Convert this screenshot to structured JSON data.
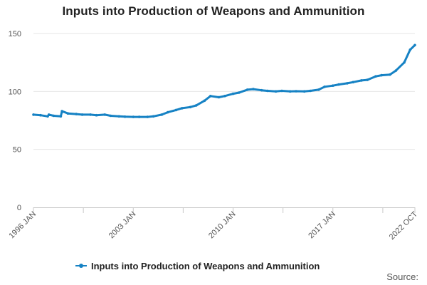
{
  "chart_data": {
    "type": "line",
    "title": "Inputs into Production of Weapons and Ammunition",
    "xlabel": "",
    "ylabel": "",
    "ylim": [
      0,
      150
    ],
    "yticks": [
      0,
      50,
      100,
      150
    ],
    "x_tick_labels": [
      "1996 JAN",
      "2003 JAN",
      "2010 JAN",
      "2017 JAN",
      "2022 OCT"
    ],
    "x_tick_dates": [
      "1996-01",
      "2003-01",
      "2010-01",
      "2017-01",
      "2022-10"
    ],
    "grid": "horizontal",
    "legend_position": "bottom",
    "series": [
      {
        "name": "Inputs into Production of Weapons and Ammunition",
        "color": "#1682c4",
        "x": [
          "1996-01",
          "1996-07",
          "1997-01",
          "1997-02",
          "1997-06",
          "1997-12",
          "1998-01",
          "1998-06",
          "1999-01",
          "1999-06",
          "2000-01",
          "2000-06",
          "2001-01",
          "2001-06",
          "2002-01",
          "2002-06",
          "2003-01",
          "2003-06",
          "2004-01",
          "2004-06",
          "2005-01",
          "2005-06",
          "2006-01",
          "2006-06",
          "2007-01",
          "2007-06",
          "2008-01",
          "2008-06",
          "2009-01",
          "2009-06",
          "2010-01",
          "2010-06",
          "2011-01",
          "2011-06",
          "2012-01",
          "2012-06",
          "2013-01",
          "2013-06",
          "2014-01",
          "2014-06",
          "2015-01",
          "2015-06",
          "2016-01",
          "2016-06",
          "2017-01",
          "2017-06",
          "2018-01",
          "2018-06",
          "2019-01",
          "2019-06",
          "2020-01",
          "2020-06",
          "2021-01",
          "2021-06",
          "2022-01",
          "2022-06",
          "2022-10"
        ],
        "values": [
          80,
          79.5,
          78.5,
          80,
          79,
          78.5,
          83,
          81,
          80.5,
          80,
          80,
          79.5,
          80,
          79,
          78.5,
          78.2,
          78,
          78,
          78,
          78.5,
          80,
          82,
          84,
          85.5,
          86.5,
          88,
          92,
          96,
          95,
          96,
          98,
          99,
          101.5,
          102,
          101,
          100.5,
          100,
          100.5,
          100,
          100.2,
          100,
          100.5,
          101.5,
          104,
          105,
          106,
          107,
          108,
          109.5,
          110,
          113,
          114,
          114.5,
          118,
          125,
          136,
          140
        ]
      }
    ]
  },
  "source_label": "Source:"
}
